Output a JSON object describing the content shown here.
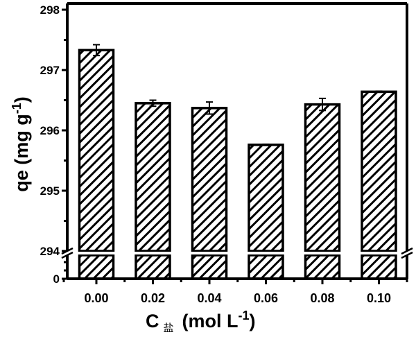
{
  "chart_data": {
    "type": "bar",
    "xlabel_main": "C",
    "xlabel_sub": "盐",
    "xlabel_unit": "(mol L",
    "xlabel_sup": "-1",
    "xlabel_close": ")",
    "ylabel_main": "qe (mg g",
    "ylabel_sup": "-1",
    "ylabel_close": ")",
    "categories": [
      "0.00",
      "0.02",
      "0.04",
      "0.06",
      "0.08",
      "0.10"
    ],
    "values": [
      297.33,
      296.45,
      296.37,
      295.76,
      296.43,
      296.64
    ],
    "errors": [
      0.09,
      0.05,
      0.1,
      0.01,
      0.1,
      0.01
    ],
    "ylim_upper": [
      294,
      298
    ],
    "ylim_lower_start": 0,
    "axis_break": [
      0,
      294
    ],
    "yticks": [
      "298",
      "297",
      "296",
      "295",
      "294",
      "0"
    ],
    "bar_fill": "diagonal hatch",
    "bar_color": "#000000",
    "grid": false
  }
}
